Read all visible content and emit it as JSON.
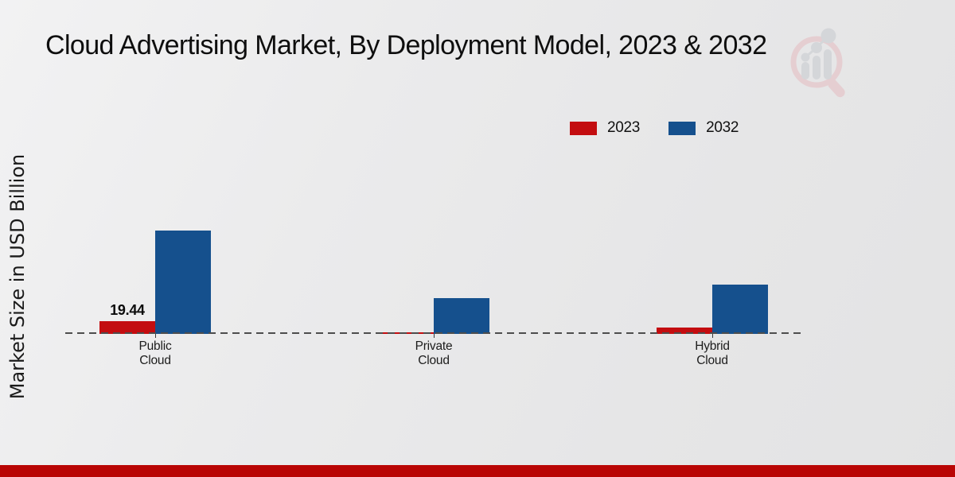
{
  "chart_data": {
    "type": "bar",
    "title": "Cloud Advertising Market, By Deployment Model, 2023 & 2032",
    "ylabel": "Market Size in USD Billion",
    "xlabel": "",
    "categories": [
      "Public Cloud",
      "Private Cloud",
      "Hybrid Cloud"
    ],
    "series": [
      {
        "name": "2023",
        "color": "#c30d10",
        "values": [
          19.44,
          3.0,
          9.7
        ]
      },
      {
        "name": "2032",
        "color": "#15508d",
        "values": [
          158.0,
          54.7,
          75.3
        ]
      }
    ],
    "annotations": [
      {
        "series": "2023",
        "category": "Public Cloud",
        "text": "19.44"
      }
    ],
    "baseline": {
      "value": 0,
      "style": "dashed",
      "color": "#4d4d4d"
    },
    "legend_position": "top-right",
    "grid": false,
    "y_axis_ticks_hidden": true
  },
  "branding": {
    "logo_name": "magnifier-bar-chart-watermark",
    "footer_color": "#b90504",
    "logo_ring_color": "#e5bcc0",
    "logo_glyph_color": "#c7c9ce"
  }
}
